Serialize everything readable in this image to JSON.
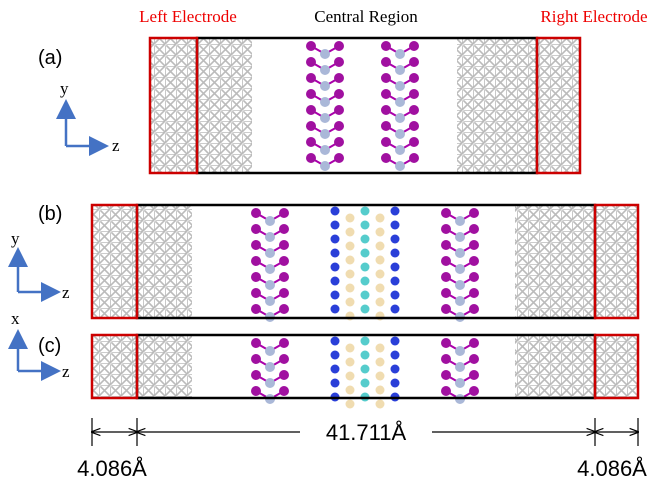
{
  "header": {
    "left": "Left Electrode",
    "center": "Central Region",
    "right": "Right Electrode"
  },
  "panels": [
    {
      "label": "(a)",
      "axes": {
        "vertical": "y",
        "horizontal": "z"
      }
    },
    {
      "label": "(b)",
      "axes": {
        "vertical": "y",
        "horizontal": "z"
      }
    },
    {
      "label": "(c)",
      "axes": {
        "vertical": "x",
        "horizontal": "z"
      }
    }
  ],
  "dimensions": {
    "center": "41.711Å",
    "left": "4.086Å",
    "right": "4.086Å"
  }
}
